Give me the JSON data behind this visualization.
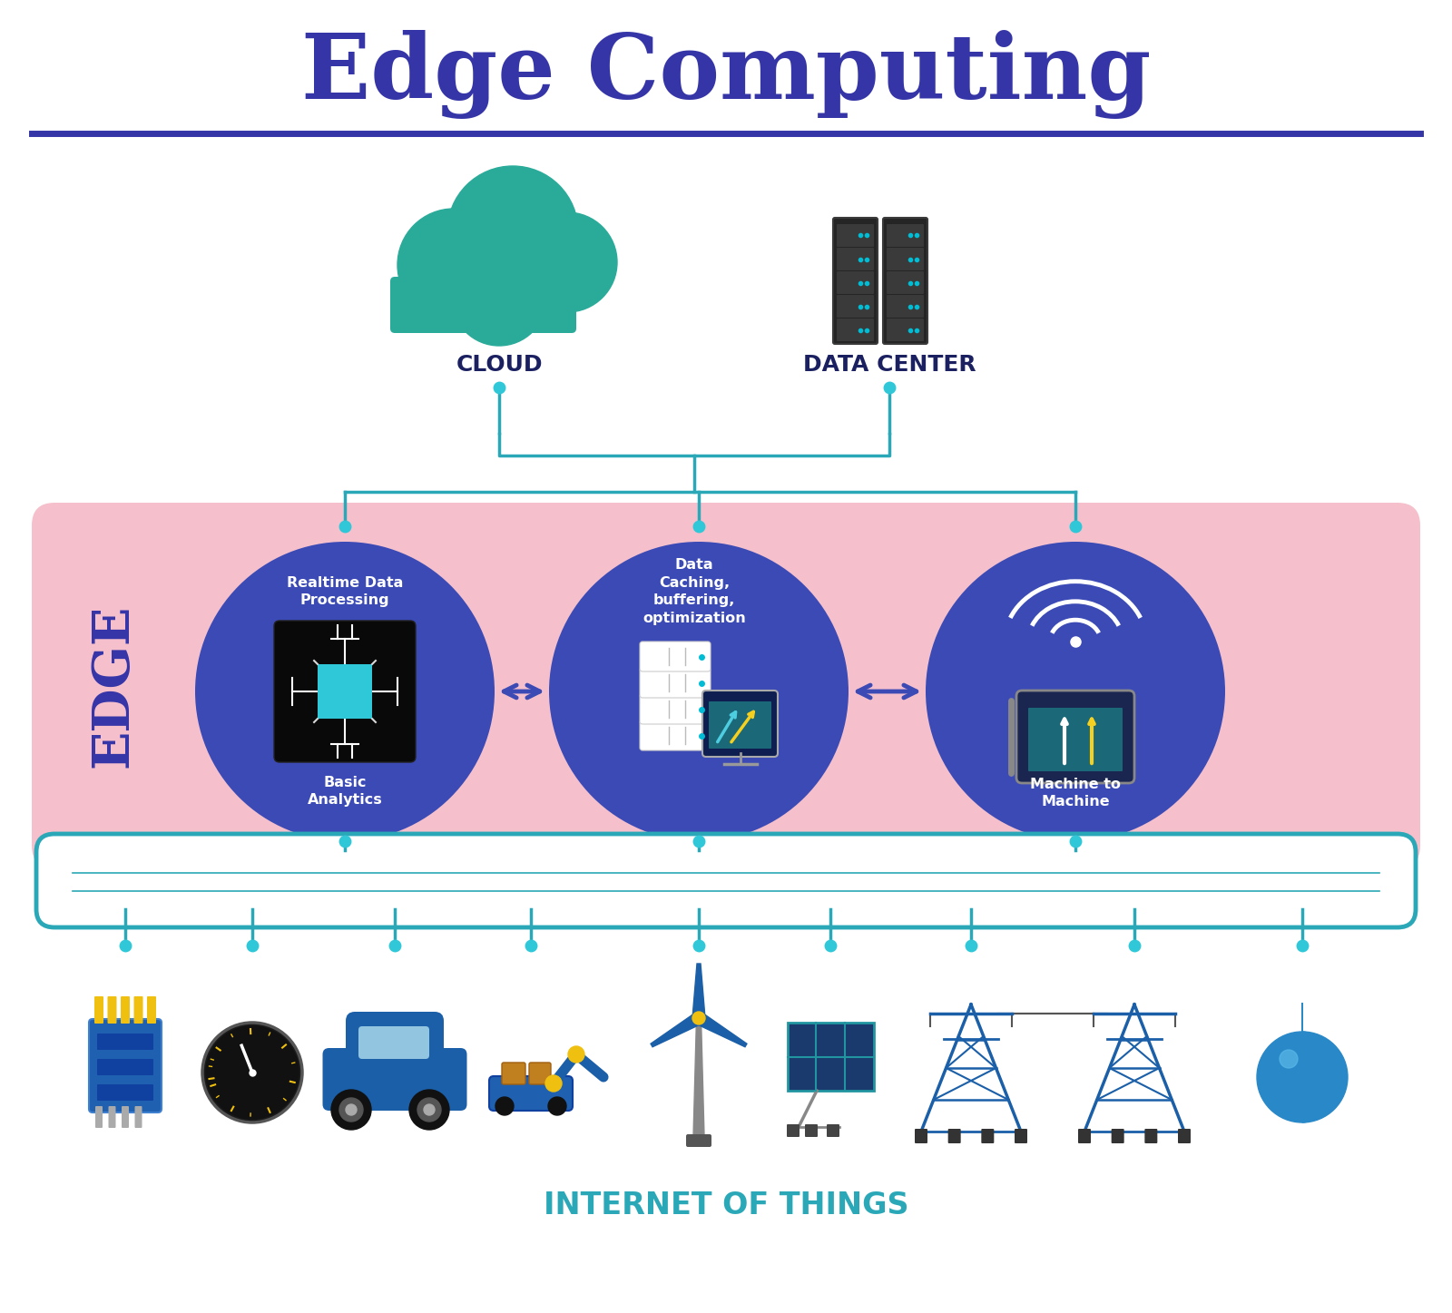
{
  "title": "Edge Computing",
  "title_color": "#3535a8",
  "title_fontsize": 72,
  "bg_color": "#ffffff",
  "edge_bg_color": "#f5c0cc",
  "edge_label": "EDGE",
  "edge_label_color": "#3535a8",
  "iot_label": "INTERNET OF THINGS",
  "iot_label_color": "#2ba8b8",
  "cloud_label": "CLOUD",
  "data_center_label": "DATA CENTER",
  "top_label_color": "#1a2060",
  "circle_color": "#3b4ab5",
  "node1_top": "Realtime Data\nProcessing",
  "node1_bot": "Basic\nAnalytics",
  "node2_label": "Data\nCaching,\nbuffering,\noptimization",
  "node3_label": "Machine to\nMachine",
  "node_text_color": "#ffffff",
  "arrow_color": "#3b4ab5",
  "connector_color": "#2ba8b8",
  "connector_dot_color": "#30c8d8",
  "icon_color": "#1a5fa8",
  "teal_color": "#2aab9a",
  "server_color": "#252525",
  "iot_border_color": "#2ba8b8",
  "underline_color": "#3535a8"
}
